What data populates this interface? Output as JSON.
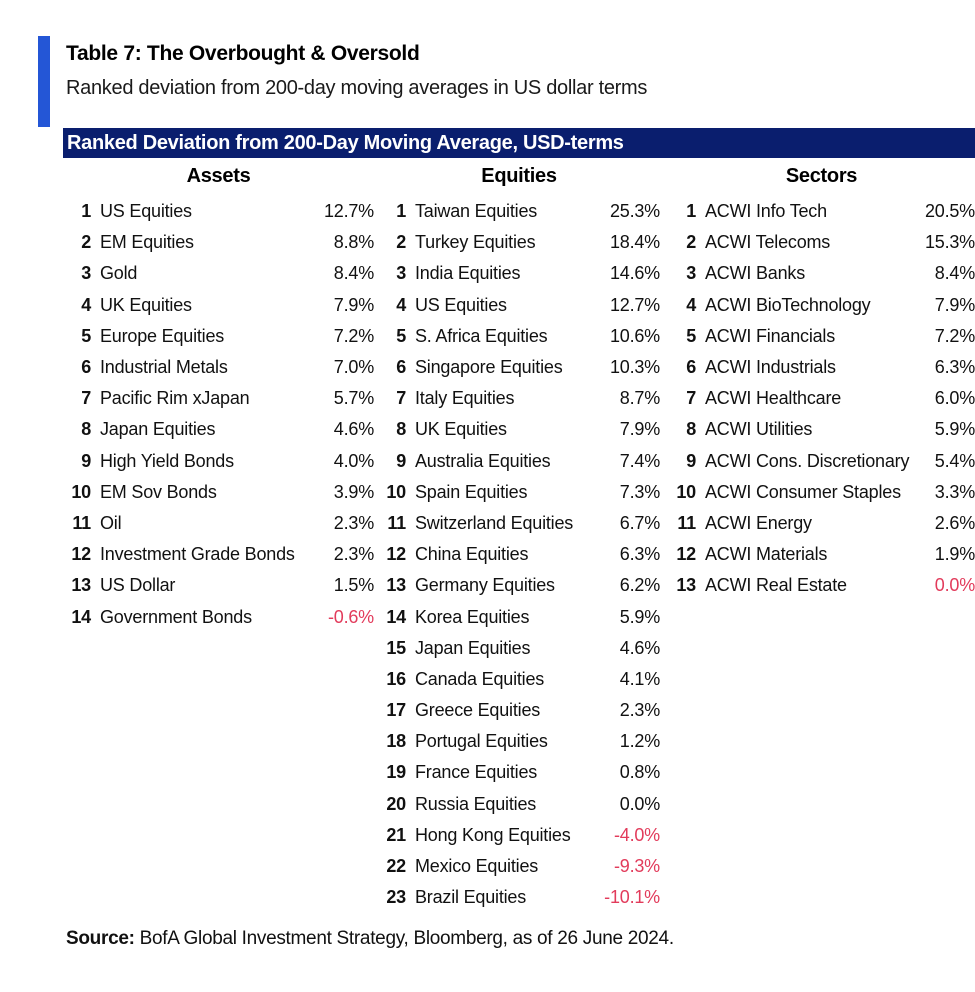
{
  "document": {
    "title": "Table 7: The Overbought & Oversold",
    "subtitle": "Ranked deviation from 200-day moving averages in US dollar terms",
    "banner_title": "Ranked Deviation from 200-Day Moving Average, USD-terms",
    "source_label": "Source:",
    "source_text": " BofA Global Investment Strategy, Bloomberg, as of 26 June 2024."
  },
  "colors": {
    "accent_blue": "#2456D6",
    "banner_navy": "#0A1E6E",
    "negative_red": "#E23B5B"
  },
  "table": {
    "columns": [
      {
        "header": "Assets",
        "rows": [
          {
            "rank": 1,
            "name": "US Equities",
            "value": "12.7%",
            "red": false
          },
          {
            "rank": 2,
            "name": "EM Equities",
            "value": "8.8%",
            "red": false
          },
          {
            "rank": 3,
            "name": "Gold",
            "value": "8.4%",
            "red": false
          },
          {
            "rank": 4,
            "name": "UK Equities",
            "value": "7.9%",
            "red": false
          },
          {
            "rank": 5,
            "name": "Europe Equities",
            "value": "7.2%",
            "red": false
          },
          {
            "rank": 6,
            "name": "Industrial Metals",
            "value": "7.0%",
            "red": false
          },
          {
            "rank": 7,
            "name": "Pacific Rim xJapan",
            "value": "5.7%",
            "red": false
          },
          {
            "rank": 8,
            "name": "Japan Equities",
            "value": "4.6%",
            "red": false
          },
          {
            "rank": 9,
            "name": "High Yield Bonds",
            "value": "4.0%",
            "red": false
          },
          {
            "rank": 10,
            "name": "EM Sov Bonds",
            "value": "3.9%",
            "red": false
          },
          {
            "rank": 11,
            "name": "Oil",
            "value": "2.3%",
            "red": false
          },
          {
            "rank": 12,
            "name": "Investment Grade Bonds",
            "value": "2.3%",
            "red": false
          },
          {
            "rank": 13,
            "name": "US Dollar",
            "value": "1.5%",
            "red": false
          },
          {
            "rank": 14,
            "name": "Government Bonds",
            "value": "-0.6%",
            "red": true
          }
        ]
      },
      {
        "header": "Equities",
        "rows": [
          {
            "rank": 1,
            "name": "Taiwan Equities",
            "value": "25.3%",
            "red": false
          },
          {
            "rank": 2,
            "name": "Turkey Equities",
            "value": "18.4%",
            "red": false
          },
          {
            "rank": 3,
            "name": "India Equities",
            "value": "14.6%",
            "red": false
          },
          {
            "rank": 4,
            "name": "US Equities",
            "value": "12.7%",
            "red": false
          },
          {
            "rank": 5,
            "name": "S. Africa Equities",
            "value": "10.6%",
            "red": false
          },
          {
            "rank": 6,
            "name": "Singapore Equities",
            "value": "10.3%",
            "red": false
          },
          {
            "rank": 7,
            "name": "Italy Equities",
            "value": "8.7%",
            "red": false
          },
          {
            "rank": 8,
            "name": "UK Equities",
            "value": "7.9%",
            "red": false
          },
          {
            "rank": 9,
            "name": "Australia Equities",
            "value": "7.4%",
            "red": false
          },
          {
            "rank": 10,
            "name": "Spain Equities",
            "value": "7.3%",
            "red": false
          },
          {
            "rank": 11,
            "name": "Switzerland Equities",
            "value": "6.7%",
            "red": false
          },
          {
            "rank": 12,
            "name": "China Equities",
            "value": "6.3%",
            "red": false
          },
          {
            "rank": 13,
            "name": "Germany Equities",
            "value": "6.2%",
            "red": false
          },
          {
            "rank": 14,
            "name": "Korea Equities",
            "value": "5.9%",
            "red": false
          },
          {
            "rank": 15,
            "name": "Japan Equities",
            "value": "4.6%",
            "red": false
          },
          {
            "rank": 16,
            "name": "Canada Equities",
            "value": "4.1%",
            "red": false
          },
          {
            "rank": 17,
            "name": "Greece Equities",
            "value": "2.3%",
            "red": false
          },
          {
            "rank": 18,
            "name": "Portugal Equities",
            "value": "1.2%",
            "red": false
          },
          {
            "rank": 19,
            "name": "France Equities",
            "value": "0.8%",
            "red": false
          },
          {
            "rank": 20,
            "name": "Russia Equities",
            "value": "0.0%",
            "red": false
          },
          {
            "rank": 21,
            "name": "Hong Kong Equities",
            "value": "-4.0%",
            "red": true
          },
          {
            "rank": 22,
            "name": "Mexico Equities",
            "value": "-9.3%",
            "red": true
          },
          {
            "rank": 23,
            "name": "Brazil Equities",
            "value": "-10.1%",
            "red": true
          }
        ]
      },
      {
        "header": "Sectors",
        "rows": [
          {
            "rank": 1,
            "name": "ACWI Info Tech",
            "value": "20.5%",
            "red": false
          },
          {
            "rank": 2,
            "name": "ACWI Telecoms",
            "value": "15.3%",
            "red": false
          },
          {
            "rank": 3,
            "name": "ACWI Banks",
            "value": "8.4%",
            "red": false
          },
          {
            "rank": 4,
            "name": "ACWI BioTechnology",
            "value": "7.9%",
            "red": false
          },
          {
            "rank": 5,
            "name": "ACWI Financials",
            "value": "7.2%",
            "red": false
          },
          {
            "rank": 6,
            "name": "ACWI Industrials",
            "value": "6.3%",
            "red": false
          },
          {
            "rank": 7,
            "name": "ACWI Healthcare",
            "value": "6.0%",
            "red": false
          },
          {
            "rank": 8,
            "name": "ACWI Utilities",
            "value": "5.9%",
            "red": false
          },
          {
            "rank": 9,
            "name": "ACWI Cons. Discretionary",
            "value": "5.4%",
            "red": false
          },
          {
            "rank": 10,
            "name": "ACWI Consumer Staples",
            "value": "3.3%",
            "red": false
          },
          {
            "rank": 11,
            "name": "ACWI Energy",
            "value": "2.6%",
            "red": false
          },
          {
            "rank": 12,
            "name": "ACWI Materials",
            "value": "1.9%",
            "red": false
          },
          {
            "rank": 13,
            "name": "ACWI Real Estate",
            "value": "0.0%",
            "red": true
          }
        ]
      }
    ]
  }
}
